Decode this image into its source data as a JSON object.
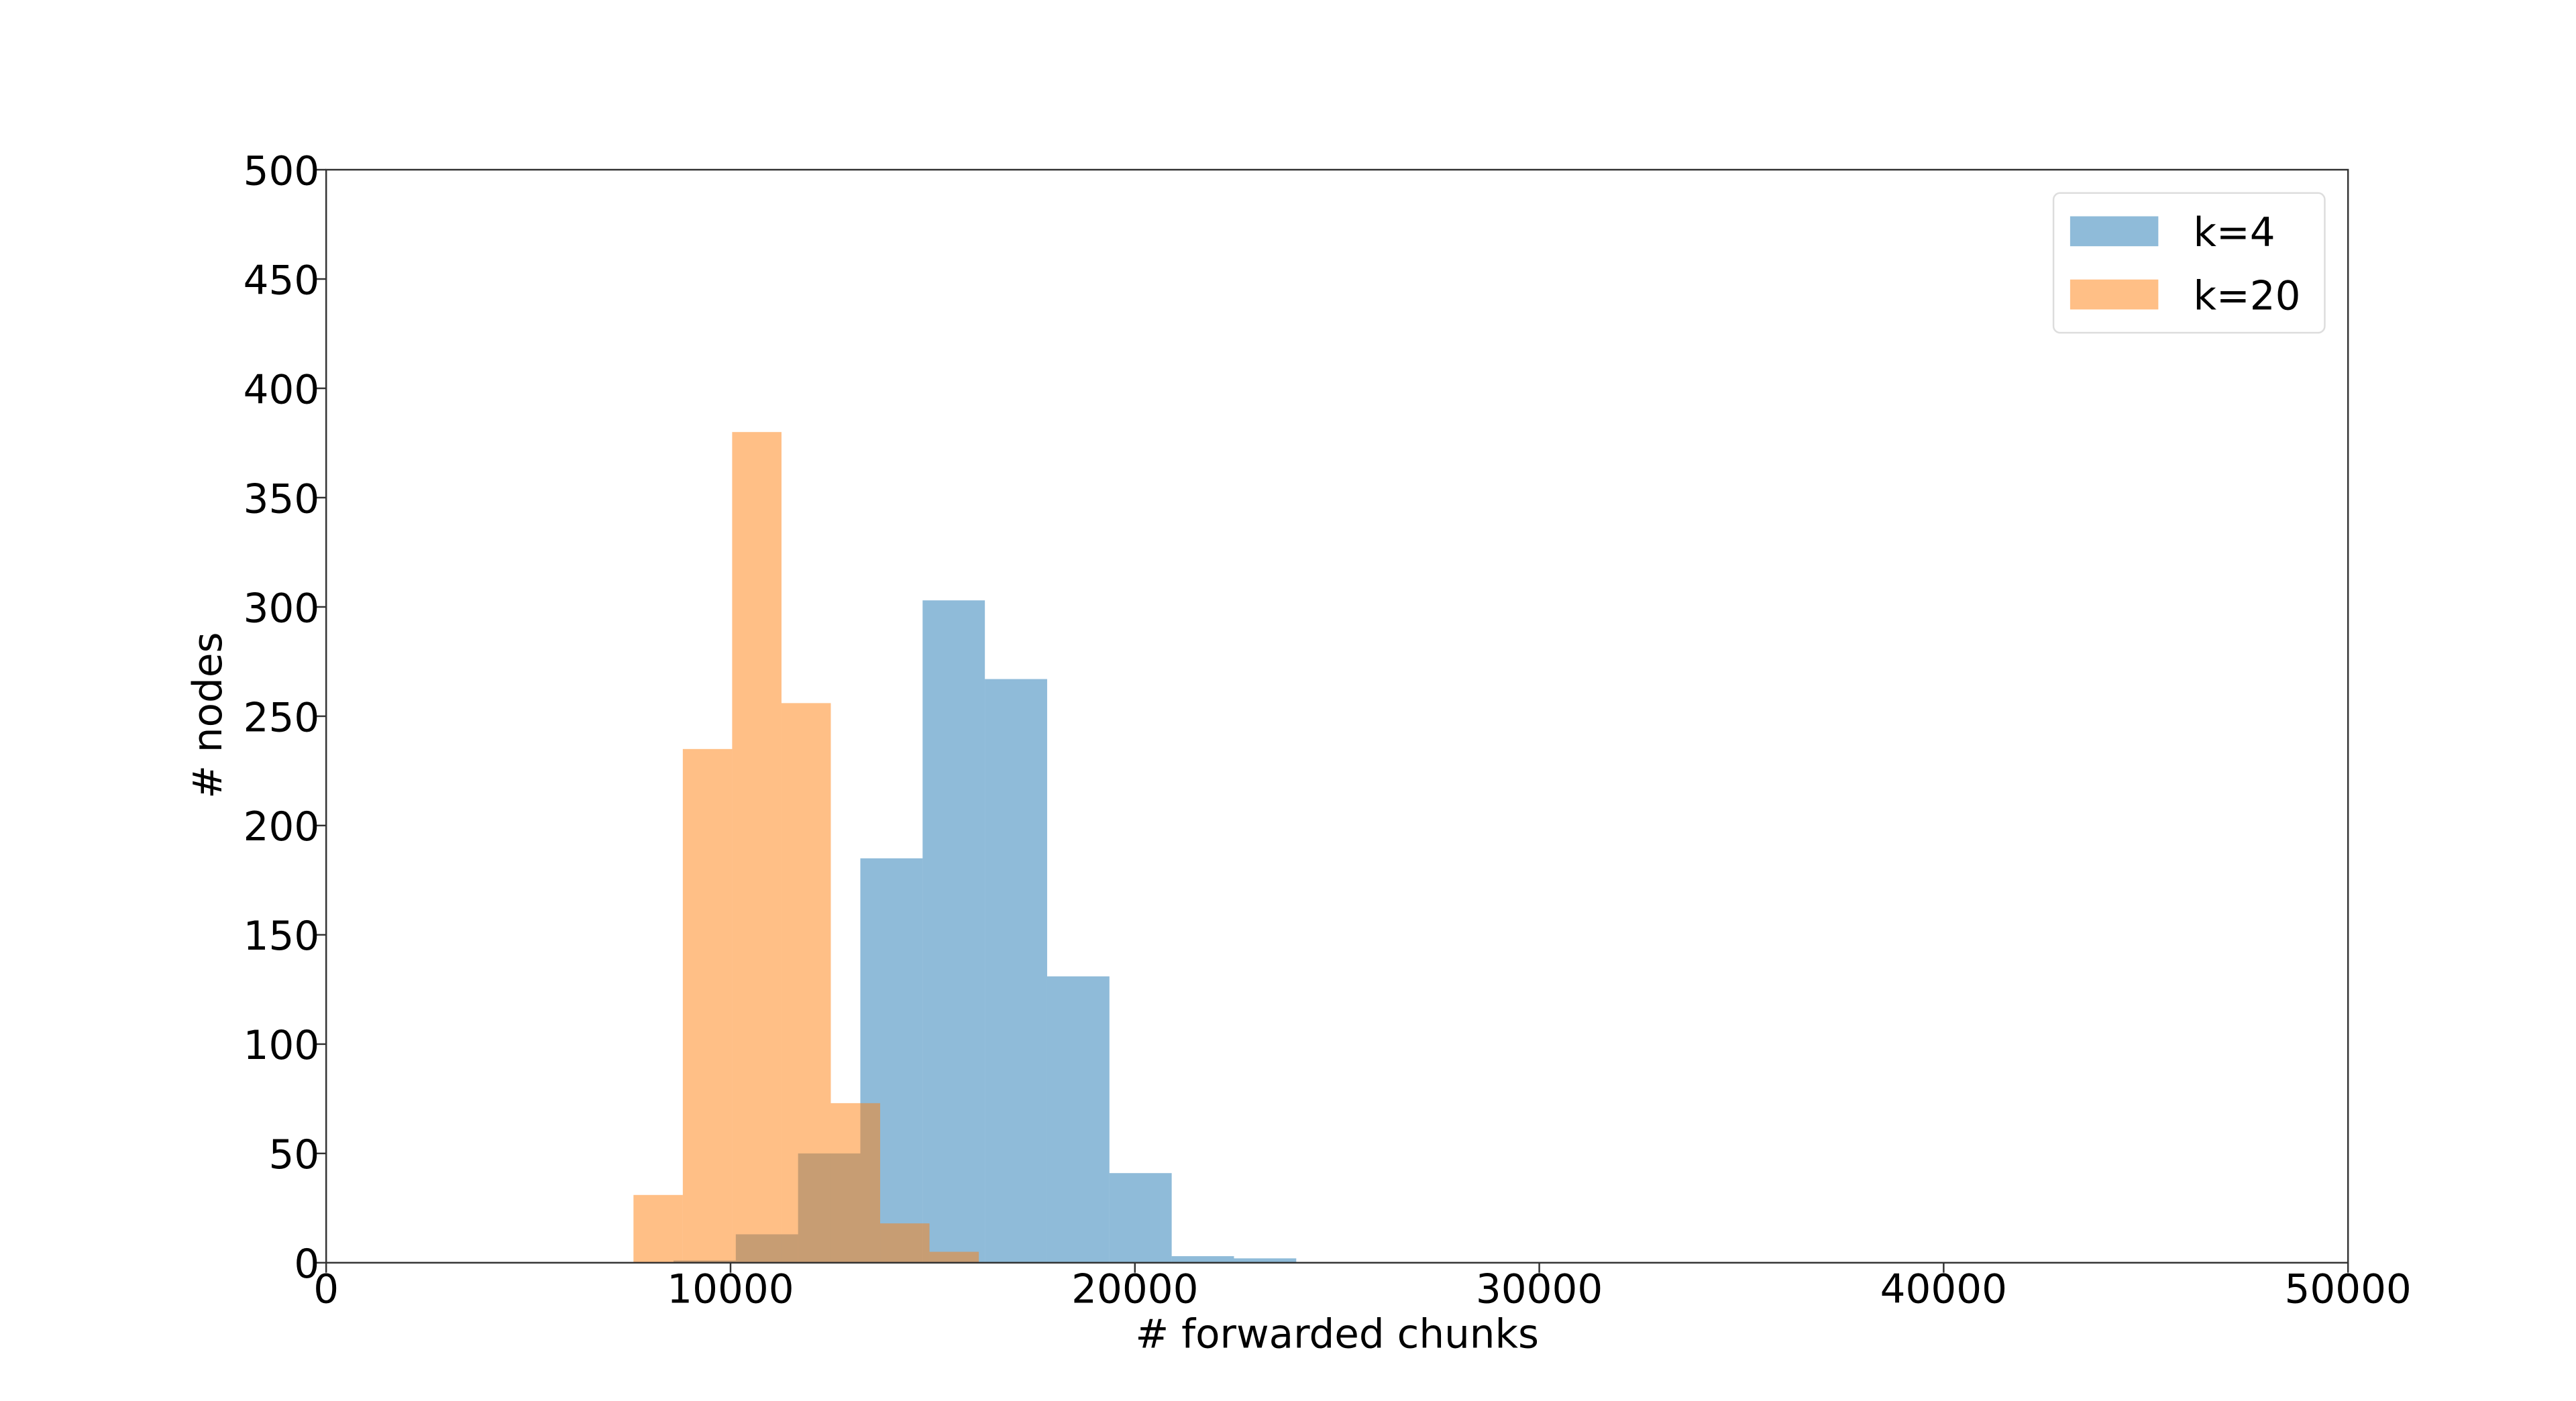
{
  "chart_data": {
    "type": "histogram",
    "xlabel": "# forwarded chunks",
    "ylabel": "# nodes",
    "xlim": [
      0,
      50000
    ],
    "ylim": [
      0,
      500
    ],
    "xticks": [
      0,
      10000,
      20000,
      30000,
      40000,
      50000
    ],
    "yticks": [
      0,
      50,
      100,
      150,
      200,
      250,
      300,
      350,
      400,
      450,
      500
    ],
    "legend": "upper right",
    "alpha": 0.5,
    "series": [
      {
        "name": "k=4",
        "color": "#1f77b4",
        "bins": [
          8590,
          10130,
          11670,
          13210,
          14750,
          16290,
          17830,
          19370,
          20910,
          22450,
          23990
        ],
        "values": [
          1,
          13,
          50,
          185,
          303,
          267,
          131,
          41,
          3,
          2
        ]
      },
      {
        "name": "k=20",
        "color": "#ff7f0e",
        "bins": [
          7600,
          8820,
          10040,
          11260,
          12480,
          13700,
          14920,
          16140
        ],
        "values": [
          31,
          235,
          380,
          256,
          73,
          18,
          5
        ]
      }
    ]
  }
}
